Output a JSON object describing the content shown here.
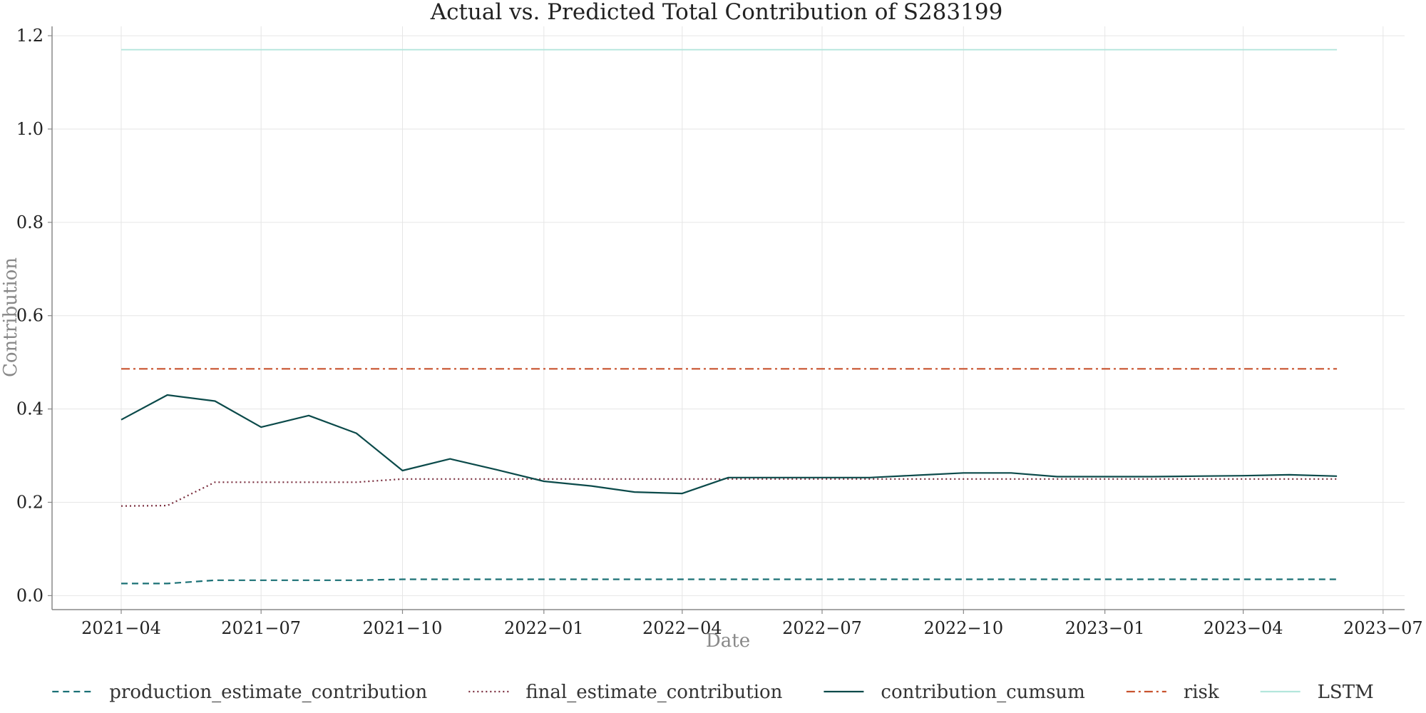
{
  "chart_data": {
    "type": "line",
    "title": "Actual vs. Predicted Total Contribution of S283199",
    "xlabel": "Date",
    "ylabel": "Contribution",
    "x_axis_kind": "date",
    "xlim": [
      "2021-02-15",
      "2023-07-15"
    ],
    "ylim": [
      -0.03,
      1.22
    ],
    "x_ticks": [
      "2021-04-01",
      "2021-07-01",
      "2021-10-01",
      "2022-01-01",
      "2022-04-01",
      "2022-07-01",
      "2022-10-01",
      "2023-01-01",
      "2023-04-01",
      "2023-07-01"
    ],
    "x_tick_labels": [
      "2021−04",
      "2021−07",
      "2021−10",
      "2022−01",
      "2022−04",
      "2022−07",
      "2022−10",
      "2023−01",
      "2023−04",
      "2023−07"
    ],
    "y_ticks": [
      0.0,
      0.2,
      0.4,
      0.6,
      0.8,
      1.0,
      1.2
    ],
    "y_tick_labels": [
      "0.0",
      "0.2",
      "0.4",
      "0.6",
      "0.8",
      "1.0",
      "1.2"
    ],
    "grid": true,
    "legend_position": "bottom-center",
    "x": [
      "2021-04-01",
      "2021-05-01",
      "2021-06-01",
      "2021-07-01",
      "2021-08-01",
      "2021-09-01",
      "2021-10-01",
      "2021-11-01",
      "2021-12-01",
      "2022-01-01",
      "2022-02-01",
      "2022-03-01",
      "2022-04-01",
      "2022-05-01",
      "2022-06-01",
      "2022-07-01",
      "2022-08-01",
      "2022-09-01",
      "2022-10-01",
      "2022-11-01",
      "2022-12-01",
      "2023-01-01",
      "2023-02-01",
      "2023-03-01",
      "2023-04-01",
      "2023-05-01",
      "2023-06-01"
    ],
    "series": [
      {
        "name": "production_estimate_contribution",
        "color": "#1a7075",
        "dash": "dashed",
        "values": [
          0.026,
          0.026,
          0.033,
          0.033,
          0.033,
          0.033,
          0.035,
          0.035,
          0.035,
          0.035,
          0.035,
          0.035,
          0.035,
          0.035,
          0.035,
          0.035,
          0.035,
          0.035,
          0.035,
          0.035,
          0.035,
          0.035,
          0.035,
          0.035,
          0.035,
          0.035,
          0.035
        ]
      },
      {
        "name": "final_estimate_contribution",
        "color": "#7a2d3d",
        "dash": "dotted",
        "values": [
          0.192,
          0.193,
          0.243,
          0.243,
          0.243,
          0.243,
          0.25,
          0.25,
          0.25,
          0.25,
          0.25,
          0.25,
          0.25,
          0.25,
          0.25,
          0.25,
          0.25,
          0.25,
          0.25,
          0.25,
          0.25,
          0.25,
          0.25,
          0.25,
          0.25,
          0.25,
          0.25
        ]
      },
      {
        "name": "contribution_cumsum",
        "color": "#0b4a4a",
        "dash": "solid",
        "values": [
          0.377,
          0.43,
          0.417,
          0.361,
          0.386,
          0.348,
          0.268,
          0.293,
          0.27,
          0.245,
          0.235,
          0.222,
          0.219,
          0.253,
          0.253,
          0.253,
          0.253,
          0.258,
          0.263,
          0.263,
          0.255,
          0.255,
          0.255,
          0.256,
          0.257,
          0.259,
          0.256
        ]
      },
      {
        "name": "risk",
        "color": "#c8532f",
        "dash": "dashdot",
        "values": [
          0.486,
          0.486,
          0.486,
          0.486,
          0.486,
          0.486,
          0.486,
          0.486,
          0.486,
          0.486,
          0.486,
          0.486,
          0.486,
          0.486,
          0.486,
          0.486,
          0.486,
          0.486,
          0.486,
          0.486,
          0.486,
          0.486,
          0.486,
          0.486,
          0.486,
          0.486,
          0.486
        ]
      },
      {
        "name": "LSTM",
        "color": "#b3e6dc",
        "dash": "solid",
        "values": [
          1.17,
          1.17,
          1.17,
          1.17,
          1.17,
          1.17,
          1.17,
          1.17,
          1.17,
          1.17,
          1.17,
          1.17,
          1.17,
          1.17,
          1.17,
          1.17,
          1.17,
          1.17,
          1.17,
          1.17,
          1.17,
          1.17,
          1.17,
          1.17,
          1.17,
          1.17,
          1.17
        ]
      }
    ]
  }
}
